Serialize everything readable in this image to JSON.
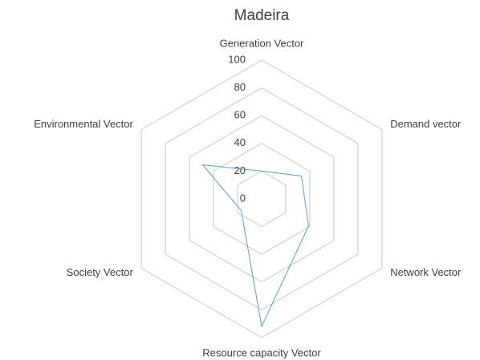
{
  "chart_data": {
    "type": "radar",
    "title": "Madeira",
    "categories": [
      "Generation Vector",
      "Demand vector",
      "Network Vector",
      "Resource capacity Vector",
      "Society Vector",
      "Environmental Vector"
    ],
    "values": [
      20,
      33,
      39,
      92,
      17,
      49
    ],
    "color": "#5b9bd5",
    "grid_color": "#d9d9d9",
    "ylim": [
      0,
      100
    ],
    "yticks": [
      0,
      20,
      40,
      60,
      80,
      100
    ],
    "grid": true
  }
}
